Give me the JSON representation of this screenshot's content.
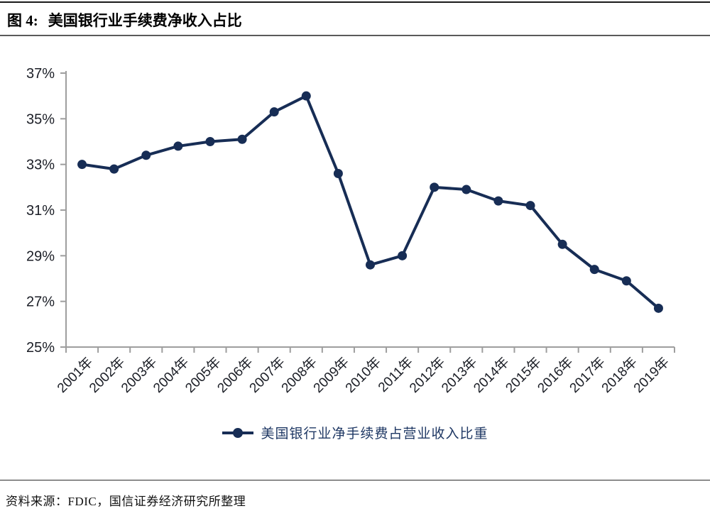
{
  "header": {
    "figure_label": "图 4:",
    "title": "美国银行业手续费净收入占比"
  },
  "legend": {
    "label": "美国银行业净手续费占营业收入比重"
  },
  "footer": {
    "source": "资料来源：FDIC，国信证券经济研究所整理"
  },
  "colors": {
    "line": "#172D55",
    "marker": "#172D55",
    "axis": "#9E9E9E",
    "tick_label": "#1B1E26",
    "legend_text": "#1F3864"
  },
  "chart_data": {
    "type": "line",
    "title": "美国银行业手续费净收入占比",
    "categories": [
      "2001年",
      "2002年",
      "2003年",
      "2004年",
      "2005年",
      "2006年",
      "2007年",
      "2008年",
      "2009年",
      "2010年",
      "2011年",
      "2012年",
      "2013年",
      "2014年",
      "2015年",
      "2016年",
      "2017年",
      "2018年",
      "2019年"
    ],
    "series": [
      {
        "name": "美国银行业净手续费占营业收入比重",
        "values": [
          33.0,
          32.8,
          33.4,
          33.8,
          34.0,
          34.1,
          35.3,
          36.0,
          32.6,
          28.6,
          29.0,
          32.0,
          31.9,
          31.4,
          31.2,
          29.5,
          28.4,
          27.9,
          26.7
        ]
      }
    ],
    "xlabel": "",
    "ylabel": "",
    "ylim": [
      25,
      37
    ],
    "ytick_step": 2,
    "ytick_labels": [
      "37%",
      "35%",
      "33%",
      "31%",
      "29%",
      "27%",
      "25%"
    ],
    "grid": false,
    "marker": "circle",
    "legend_position": "bottom"
  }
}
